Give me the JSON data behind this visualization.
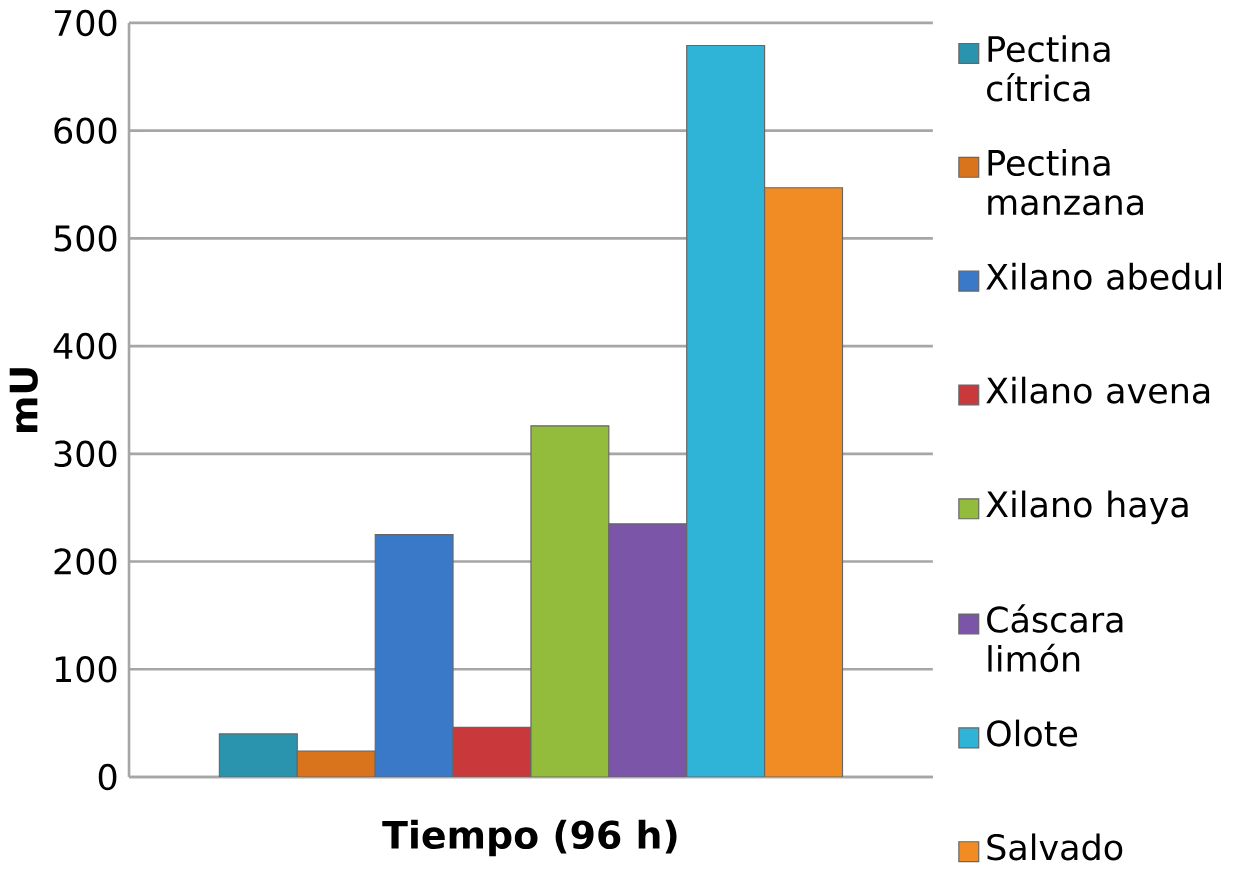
{
  "chart_data": {
    "type": "bar",
    "xlabel": "Tiempo (96 h)",
    "ylabel": "mU",
    "categories": [
      null
    ],
    "ylim": [
      0,
      700
    ],
    "yticks": [
      0,
      100,
      200,
      300,
      400,
      500,
      600,
      700
    ],
    "grid": "y",
    "legend": "right",
    "series": [
      {
        "name": "Pectina cítrica",
        "color": "#2a93ad",
        "values": [
          40
        ]
      },
      {
        "name": "Pectina manzana",
        "color": "#d9741c",
        "values": [
          24
        ]
      },
      {
        "name": "Xilano abedul",
        "color": "#3a78c8",
        "values": [
          225
        ]
      },
      {
        "name": "Xilano avena",
        "color": "#c9383a",
        "values": [
          46
        ]
      },
      {
        "name": "Xilano haya",
        "color": "#93bb3c",
        "values": [
          326
        ]
      },
      {
        "name": "Cáscara limón",
        "color": "#7a55a8",
        "values": [
          235
        ]
      },
      {
        "name": "Olote",
        "color": "#2fb3d6",
        "values": [
          679
        ]
      },
      {
        "name": "Salvado",
        "color": "#f18c25",
        "values": [
          547
        ]
      }
    ]
  }
}
